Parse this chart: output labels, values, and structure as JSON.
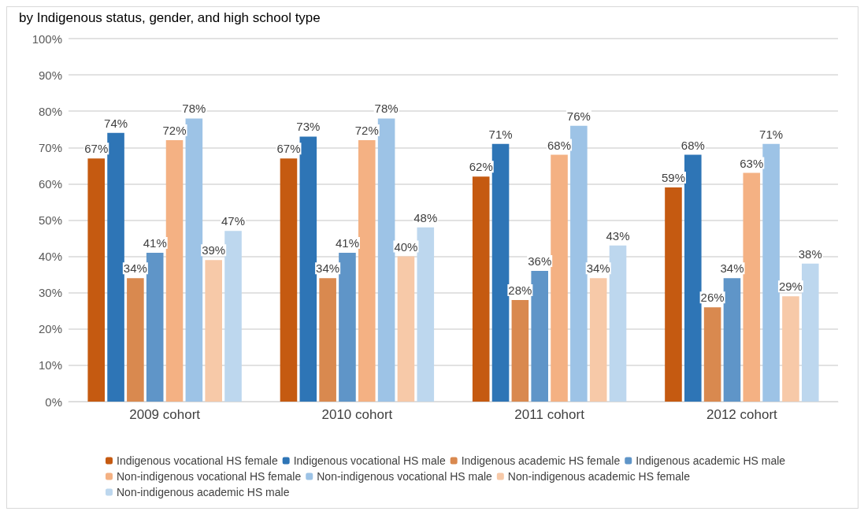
{
  "chart_data": {
    "type": "bar",
    "title": "by Indigenous status, gender, and high school type",
    "categories": [
      "2009 cohort",
      "2010 cohort",
      "2011 cohort",
      "2012 cohort"
    ],
    "series": [
      {
        "name": "Indigenous vocational HS female",
        "color": "#c55a11",
        "values": [
          67,
          67,
          62,
          59
        ],
        "value_labels": [
          "67%",
          "67%",
          "62%",
          "59%"
        ]
      },
      {
        "name": "Indigenous vocational HS male",
        "color": "#2e75b6",
        "values": [
          74,
          73,
          71,
          68
        ],
        "value_labels": [
          "74%",
          "73%",
          "71%",
          "68%"
        ]
      },
      {
        "name": "Indigenous academic HS female",
        "color": "#d9894f",
        "values": [
          34,
          34,
          28,
          26
        ],
        "value_labels": [
          "34%",
          "34%",
          "28%",
          "26%"
        ]
      },
      {
        "name": "Indigenous academic HS male",
        "color": "#5f95c8",
        "values": [
          41,
          41,
          36,
          34
        ],
        "value_labels": [
          "41%",
          "41%",
          "36%",
          "34%"
        ]
      },
      {
        "name": "Non-indigenous vocational HS female",
        "color": "#f4b183",
        "values": [
          72,
          72,
          68,
          63
        ],
        "value_labels": [
          "72%",
          "72%",
          "68%",
          "63%"
        ]
      },
      {
        "name": "Non-indigenous vocational HS male",
        "color": "#9dc3e6",
        "values": [
          78,
          78,
          76,
          71
        ],
        "value_labels": [
          "78%",
          "78%",
          "76%",
          "71%"
        ]
      },
      {
        "name": "Non-indigenous academic HS female",
        "color": "#f7c9a8",
        "values": [
          39,
          40,
          34,
          29
        ],
        "value_labels": [
          "39%",
          "40%",
          "34%",
          "29%"
        ]
      },
      {
        "name": "Non-indigenous academic HS male",
        "color": "#bdd7ee",
        "values": [
          47,
          48,
          43,
          38
        ],
        "value_labels": [
          "47%",
          "48%",
          "43%",
          "38%"
        ]
      }
    ],
    "ylim": [
      0,
      100
    ],
    "yticks": [
      {
        "value": 0,
        "label": "0%"
      },
      {
        "value": 10,
        "label": "10%"
      },
      {
        "value": 20,
        "label": "20%"
      },
      {
        "value": 30,
        "label": "30%"
      },
      {
        "value": 40,
        "label": "40%"
      },
      {
        "value": 50,
        "label": "50%"
      },
      {
        "value": 60,
        "label": "60%"
      },
      {
        "value": 70,
        "label": "70%"
      },
      {
        "value": 80,
        "label": "80%"
      },
      {
        "value": 90,
        "label": "90%"
      },
      {
        "value": 100,
        "label": "100%"
      }
    ],
    "grid": "y",
    "legend": "bottom"
  }
}
